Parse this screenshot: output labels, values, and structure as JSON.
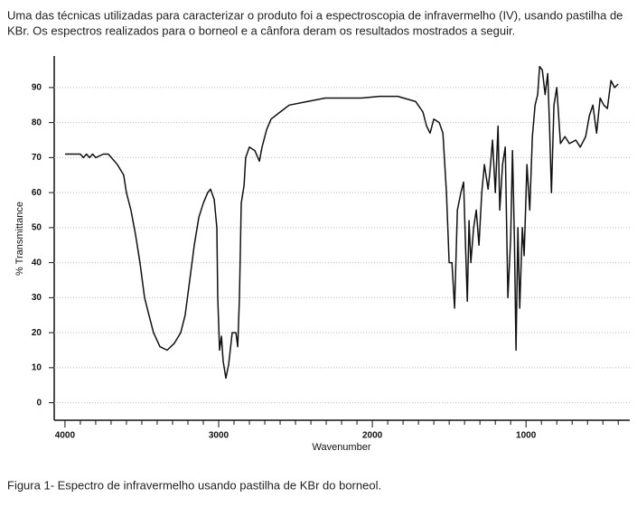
{
  "intro_lines": [
    "Uma das técnicas utilizadas para caracterizar o produto foi a espectroscopia de infravermelho (IV), usando pastilha de",
    "KBr. Os espectros realizados para o borneol e a cânfora deram os resultados mostrados a seguir."
  ],
  "chart_data": {
    "type": "line",
    "x_label": "Wavenumber",
    "y_label": "% Transmittance",
    "xlim": [
      4070,
      325
    ],
    "ylim": [
      -5,
      99
    ],
    "xticks": [
      4000,
      3000,
      2000,
      1000
    ],
    "xminorticks": [
      3900,
      3800,
      3700,
      3600,
      3500,
      3400,
      3300,
      3200,
      3100,
      2900,
      2800,
      2700,
      2600,
      2500,
      2400,
      2300,
      2200,
      2100,
      1900,
      1800,
      1700,
      1600,
      1500,
      1400,
      1300,
      1200,
      1100,
      900,
      800,
      700,
      600,
      500,
      400
    ],
    "yticks": [
      0,
      10,
      20,
      30,
      40,
      50,
      60,
      70,
      80,
      90
    ],
    "grid": true,
    "color": "#111111",
    "x": [
      4000,
      3900,
      3880,
      3860,
      3840,
      3820,
      3800,
      3750,
      3718,
      3659,
      3618,
      3600,
      3571,
      3541,
      3512,
      3482,
      3453,
      3424,
      3382,
      3335,
      3288,
      3247,
      3218,
      3188,
      3159,
      3129,
      3100,
      3071,
      3053,
      3029,
      3012,
      3006,
      2994,
      2982,
      2971,
      2953,
      2935,
      2912,
      2888,
      2876,
      2865,
      2853,
      2835,
      2824,
      2800,
      2765,
      2735,
      2718,
      2688,
      2659,
      2600,
      2541,
      2424,
      2306,
      2188,
      2071,
      1953,
      1835,
      1718,
      1671,
      1647,
      1624,
      1600,
      1565,
      1541,
      1518,
      1500,
      1482,
      1465,
      1447,
      1424,
      1406,
      1394,
      1382,
      1371,
      1359,
      1341,
      1324,
      1306,
      1288,
      1271,
      1247,
      1235,
      1218,
      1200,
      1182,
      1171,
      1153,
      1135,
      1118,
      1100,
      1088,
      1076,
      1065,
      1053,
      1041,
      1024,
      1012,
      994,
      976,
      959,
      941,
      924,
      912,
      894,
      876,
      859,
      847,
      835,
      818,
      800,
      776,
      747,
      718,
      676,
      647,
      612,
      588,
      565,
      541,
      518,
      494,
      471,
      447,
      424,
      400
    ],
    "values": [
      71,
      71,
      70,
      71,
      70,
      71,
      70,
      71,
      71,
      68,
      65,
      60,
      55,
      48,
      40,
      30,
      25,
      20,
      16,
      15,
      17,
      20,
      25,
      35,
      45,
      53,
      57,
      60,
      61,
      58,
      50,
      30,
      15,
      19,
      12,
      7,
      11,
      20,
      20,
      16,
      30,
      57,
      62,
      70,
      73,
      72,
      69,
      73,
      78,
      81,
      83,
      85,
      86,
      87,
      87,
      87,
      87.5,
      87.5,
      86,
      83,
      79,
      77,
      81,
      80,
      77,
      60,
      40,
      40,
      27,
      55,
      60,
      63,
      45,
      29,
      52,
      40,
      50,
      55,
      45,
      60,
      68,
      61,
      66,
      75,
      60,
      79,
      55,
      68,
      73,
      30,
      47,
      72,
      47,
      15,
      50,
      27,
      50,
      42,
      68,
      55,
      76,
      85,
      88,
      96,
      95,
      88,
      94,
      79,
      60,
      85,
      90,
      74,
      76,
      74,
      75,
      73,
      76,
      82,
      85,
      77,
      87,
      85,
      84,
      92,
      90,
      91
    ]
  },
  "caption": "Figura 1- Espectro de infravermelho usando pastilha de KBr do borneol."
}
